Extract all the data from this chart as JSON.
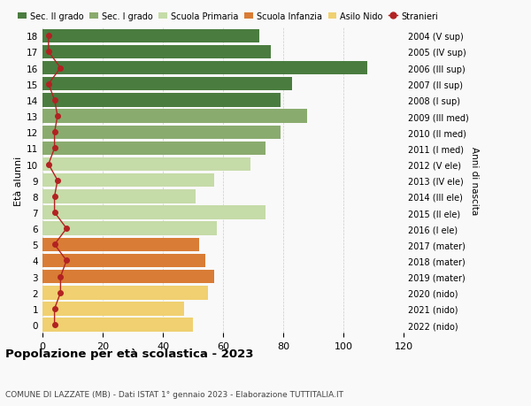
{
  "ages": [
    18,
    17,
    16,
    15,
    14,
    13,
    12,
    11,
    10,
    9,
    8,
    7,
    6,
    5,
    4,
    3,
    2,
    1,
    0
  ],
  "years": [
    "2004 (V sup)",
    "2005 (IV sup)",
    "2006 (III sup)",
    "2007 (II sup)",
    "2008 (I sup)",
    "2009 (III med)",
    "2010 (II med)",
    "2011 (I med)",
    "2012 (V ele)",
    "2013 (IV ele)",
    "2014 (III ele)",
    "2015 (II ele)",
    "2016 (I ele)",
    "2017 (mater)",
    "2018 (mater)",
    "2019 (mater)",
    "2020 (nido)",
    "2021 (nido)",
    "2022 (nido)"
  ],
  "bar_values": [
    72,
    76,
    108,
    83,
    79,
    88,
    79,
    74,
    69,
    57,
    51,
    74,
    58,
    52,
    54,
    57,
    55,
    47,
    50
  ],
  "stranieri": [
    2,
    2,
    6,
    2,
    4,
    5,
    4,
    4,
    2,
    5,
    4,
    4,
    8,
    4,
    8,
    6,
    6,
    4,
    4
  ],
  "bar_colors": [
    "#4a7c3f",
    "#4a7c3f",
    "#4a7c3f",
    "#4a7c3f",
    "#4a7c3f",
    "#8aab6e",
    "#8aab6e",
    "#8aab6e",
    "#c5dba8",
    "#c5dba8",
    "#c5dba8",
    "#c5dba8",
    "#c5dba8",
    "#d97c35",
    "#d97c35",
    "#d97c35",
    "#f0d070",
    "#f0d070",
    "#f0d070"
  ],
  "legend_labels": [
    "Sec. II grado",
    "Sec. I grado",
    "Scuola Primaria",
    "Scuola Infanzia",
    "Asilo Nido",
    "Stranieri"
  ],
  "legend_colors": [
    "#4a7c3f",
    "#8aab6e",
    "#c5dba8",
    "#d97c35",
    "#f0d070",
    "#b22222"
  ],
  "title_bold": "Popolazione per età scolastica - 2023",
  "subtitle": "COMUNE DI LAZZATE (MB) - Dati ISTAT 1° gennaio 2023 - Elaborazione TUTTITALIA.IT",
  "xlabel_right": "Anni di nascita",
  "ylabel": "Età alunni",
  "xlim": [
    0,
    120
  ],
  "background_color": "#f9f9f9",
  "stranieri_color": "#b22222"
}
